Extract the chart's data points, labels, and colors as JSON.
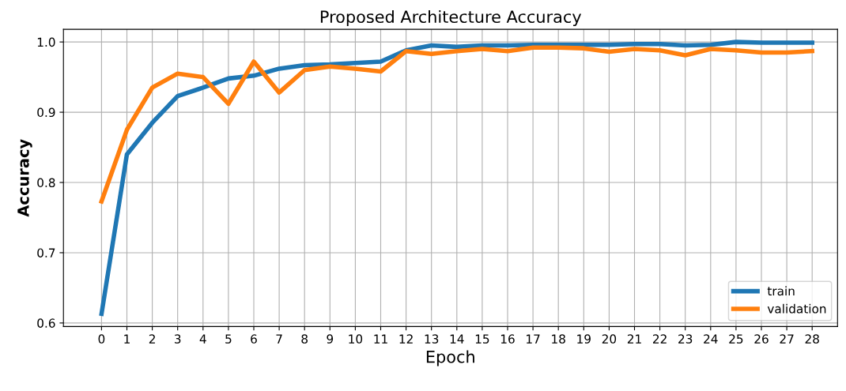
{
  "chart_data": {
    "type": "line",
    "title": "Proposed Architecture Accuracy",
    "xlabel": "Epoch",
    "ylabel": "Accuracy",
    "x": [
      0,
      1,
      2,
      3,
      4,
      5,
      6,
      7,
      8,
      9,
      10,
      11,
      12,
      13,
      14,
      15,
      16,
      17,
      18,
      19,
      20,
      21,
      22,
      23,
      24,
      25,
      26,
      27,
      28
    ],
    "series": [
      {
        "name": "train",
        "color": "#1f77b4",
        "values": [
          0.613,
          0.84,
          0.885,
          0.923,
          0.935,
          0.948,
          0.952,
          0.962,
          0.967,
          0.968,
          0.97,
          0.972,
          0.988,
          0.995,
          0.993,
          0.995,
          0.995,
          0.996,
          0.996,
          0.996,
          0.996,
          0.997,
          0.997,
          0.995,
          0.996,
          1.0,
          0.999,
          0.999,
          0.999
        ]
      },
      {
        "name": "validation",
        "color": "#ff7f0e",
        "values": [
          0.773,
          0.875,
          0.935,
          0.955,
          0.95,
          0.912,
          0.972,
          0.928,
          0.96,
          0.965,
          0.962,
          0.958,
          0.987,
          0.983,
          0.987,
          0.99,
          0.987,
          0.992,
          0.992,
          0.991,
          0.986,
          0.99,
          0.988,
          0.981,
          0.99,
          0.988,
          0.985,
          0.985,
          0.987
        ]
      }
    ],
    "xlim": [
      -1.5,
      29
    ],
    "ylim": [
      0.595,
      1.018
    ],
    "xticks": [
      0,
      1,
      2,
      3,
      4,
      5,
      6,
      7,
      8,
      9,
      10,
      11,
      12,
      13,
      14,
      15,
      16,
      17,
      18,
      19,
      20,
      21,
      22,
      23,
      24,
      25,
      26,
      27,
      28
    ],
    "yticks": [
      {
        "value": 0.6,
        "label": "0.6"
      },
      {
        "value": 0.7,
        "label": "0.7"
      },
      {
        "value": 0.8,
        "label": "0.8"
      },
      {
        "value": 0.9,
        "label": "0.9"
      },
      {
        "value": 1.0,
        "label": "1.0"
      }
    ],
    "grid": true,
    "legend": "lower right",
    "line_style": "solid",
    "marker": "none"
  }
}
